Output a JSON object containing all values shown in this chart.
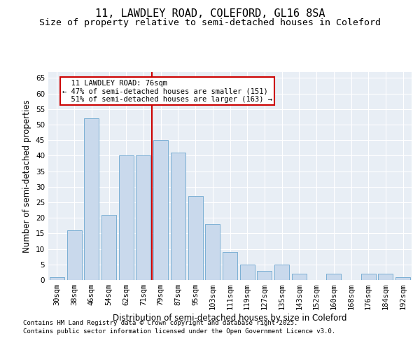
{
  "title_line1": "11, LAWDLEY ROAD, COLEFORD, GL16 8SA",
  "title_line2": "Size of property relative to semi-detached houses in Coleford",
  "xlabel": "Distribution of semi-detached houses by size in Coleford",
  "ylabel": "Number of semi-detached properties",
  "categories": [
    "30sqm",
    "38sqm",
    "46sqm",
    "54sqm",
    "62sqm",
    "71sqm",
    "79sqm",
    "87sqm",
    "95sqm",
    "103sqm",
    "111sqm",
    "119sqm",
    "127sqm",
    "135sqm",
    "143sqm",
    "152sqm",
    "160sqm",
    "168sqm",
    "176sqm",
    "184sqm",
    "192sqm"
  ],
  "values": [
    1,
    16,
    52,
    21,
    40,
    40,
    45,
    41,
    27,
    18,
    9,
    5,
    3,
    5,
    2,
    0,
    2,
    0,
    2,
    2,
    1
  ],
  "bar_color": "#c9d9ec",
  "bar_edge_color": "#7bafd4",
  "marker_label": "11 LAWDLEY ROAD: 76sqm",
  "smaller_pct": "47%",
  "smaller_n": 151,
  "larger_pct": "51%",
  "larger_n": 163,
  "annotation_box_color": "#cc0000",
  "vline_color": "#cc0000",
  "vline_x_pos": 5.5,
  "ylim": [
    0,
    67
  ],
  "yticks": [
    0,
    5,
    10,
    15,
    20,
    25,
    30,
    35,
    40,
    45,
    50,
    55,
    60,
    65
  ],
  "bg_color": "#e8eef5",
  "footer_line1": "Contains HM Land Registry data © Crown copyright and database right 2025.",
  "footer_line2": "Contains public sector information licensed under the Open Government Licence v3.0.",
  "title_fontsize": 11,
  "subtitle_fontsize": 9.5,
  "axis_label_fontsize": 8.5,
  "tick_fontsize": 7.5,
  "footer_fontsize": 6.5,
  "annot_fontsize": 7.5
}
